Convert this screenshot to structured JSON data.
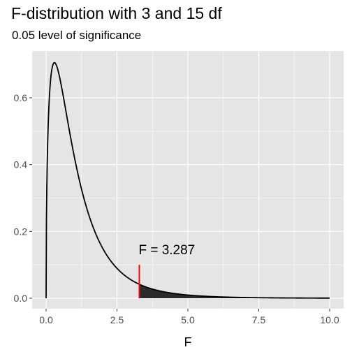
{
  "chart_data": {
    "type": "area",
    "title": "F-distribution with 3 and 15 df",
    "subtitle": "0.05 level of significance",
    "xlabel": "F",
    "ylabel": "",
    "distribution": {
      "df1": 3,
      "df2": 15
    },
    "xlim": [
      0,
      10
    ],
    "ylim": [
      0,
      0.72
    ],
    "x_ticks": [
      0,
      2.5,
      5,
      7.5,
      10
    ],
    "x_tick_labels": [
      "0.0",
      "2.5",
      "5.0",
      "7.5",
      "10.0"
    ],
    "y_ticks": [
      0,
      0.2,
      0.4,
      0.6
    ],
    "y_tick_labels": [
      "0.0",
      "0.2",
      "0.4",
      "0.6"
    ],
    "critical_value": 3.287,
    "critical_line_height": 0.1,
    "annotation": "F = 3.287",
    "grid": true,
    "colors": {
      "panel": "#e5e5e5",
      "grid_major": "#ffffff",
      "curve": "#000000",
      "shade": "#2b2b2b",
      "critical_line": "#ff0000"
    }
  }
}
